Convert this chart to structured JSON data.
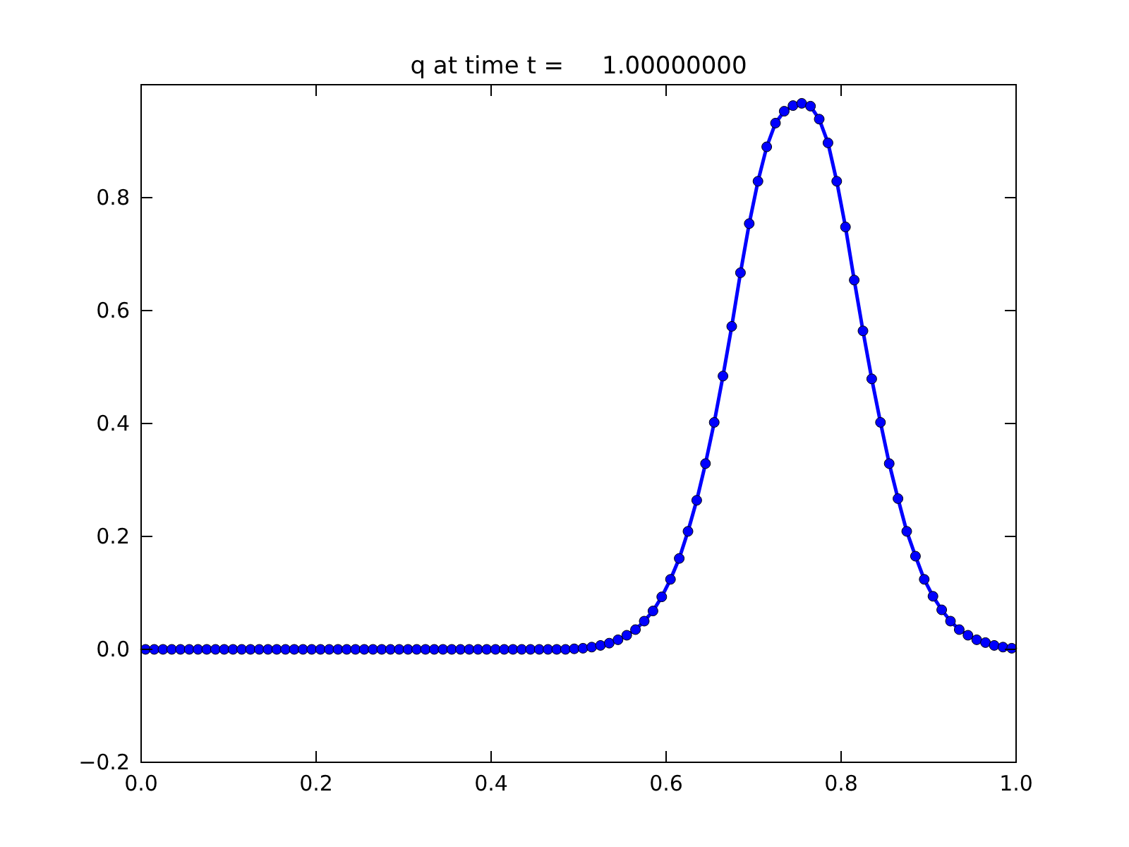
{
  "chart_data": {
    "type": "line",
    "title": "q at time t =     1.00000000",
    "x": [
      0.005,
      0.015,
      0.025,
      0.035,
      0.045,
      0.055,
      0.065,
      0.075,
      0.085,
      0.095,
      0.105,
      0.115,
      0.125,
      0.135,
      0.145,
      0.155,
      0.165,
      0.175,
      0.185,
      0.195,
      0.205,
      0.215,
      0.225,
      0.235,
      0.245,
      0.255,
      0.265,
      0.275,
      0.285,
      0.295,
      0.305,
      0.315,
      0.325,
      0.335,
      0.345,
      0.355,
      0.365,
      0.375,
      0.385,
      0.395,
      0.405,
      0.415,
      0.425,
      0.435,
      0.445,
      0.455,
      0.465,
      0.475,
      0.485,
      0.495,
      0.505,
      0.515,
      0.525,
      0.535,
      0.545,
      0.555,
      0.565,
      0.575,
      0.585,
      0.595,
      0.605,
      0.615,
      0.625,
      0.635,
      0.645,
      0.655,
      0.665,
      0.675,
      0.685,
      0.695,
      0.705,
      0.715,
      0.725,
      0.735,
      0.745,
      0.755,
      0.765,
      0.775,
      0.785,
      0.795,
      0.805,
      0.815,
      0.825,
      0.835,
      0.845,
      0.855,
      0.865,
      0.875,
      0.885,
      0.895,
      0.905,
      0.915,
      0.925,
      0.935,
      0.945,
      0.955,
      0.965,
      0.975,
      0.985,
      0.995
    ],
    "series": [
      {
        "color": "#0000ff",
        "values": [
          0,
          0,
          0,
          0,
          0,
          0,
          0,
          0,
          0,
          0,
          0,
          0,
          0,
          0,
          0,
          0,
          0,
          0,
          0,
          0,
          0,
          0,
          0,
          0,
          0,
          0,
          0,
          0,
          0,
          0,
          0,
          0,
          0,
          0,
          0,
          0,
          0,
          0,
          0,
          0,
          0,
          0,
          0,
          0,
          0,
          0,
          0,
          0,
          0,
          0.001,
          0.002,
          0.004,
          0.007,
          0.011,
          0.017,
          0.025,
          0.035,
          0.05,
          0.068,
          0.093,
          0.124,
          0.161,
          0.209,
          0.264,
          0.329,
          0.402,
          0.484,
          0.572,
          0.667,
          0.754,
          0.829,
          0.89,
          0.932,
          0.953,
          0.963,
          0.967,
          0.962,
          0.939,
          0.897,
          0.829,
          0.748,
          0.654,
          0.564,
          0.479,
          0.402,
          0.329,
          0.267,
          0.209,
          0.165,
          0.124,
          0.094,
          0.07,
          0.05,
          0.035,
          0.025,
          0.017,
          0.012,
          0.007,
          0.004,
          0.002
        ]
      }
    ],
    "xlim": [
      0,
      1
    ],
    "xticks": [
      {
        "value": 0,
        "label": "0.0"
      },
      {
        "value": 0.2,
        "label": "0.2"
      },
      {
        "value": 0.4,
        "label": "0.4"
      },
      {
        "value": 0.6,
        "label": "0.6"
      },
      {
        "value": 0.8,
        "label": "0.8"
      },
      {
        "value": 1,
        "label": "1.0"
      }
    ],
    "ylim": [
      -0.2,
      1
    ],
    "yticks": [
      {
        "value": -0.2,
        "label": "−0.2"
      },
      {
        "value": 0,
        "label": "0.0"
      },
      {
        "value": 0.2,
        "label": "0.2"
      },
      {
        "value": 0.4,
        "label": "0.4"
      },
      {
        "value": 0.6,
        "label": "0.6"
      },
      {
        "value": 0.8,
        "label": "0.8"
      }
    ],
    "marker": "circle",
    "line_style": "solid"
  }
}
